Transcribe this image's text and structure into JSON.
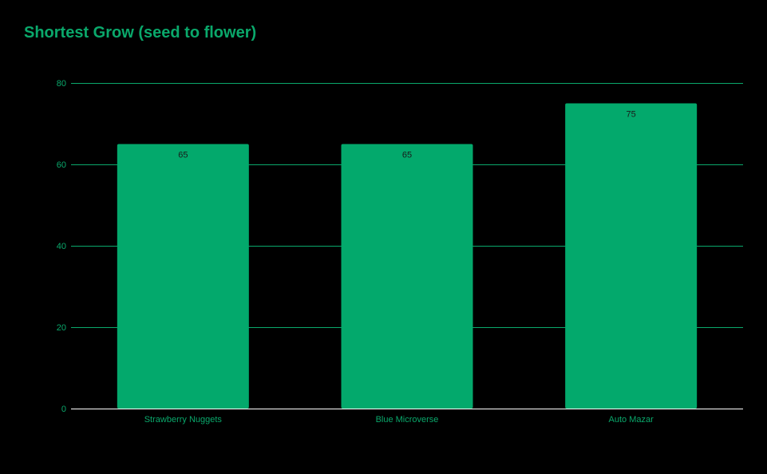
{
  "colors": {
    "background": "#000000",
    "accent": "#0aa86b",
    "bar": "#03a96c",
    "baseline": "#ffffff"
  },
  "chart_data": {
    "type": "bar",
    "title": "Shortest Grow (seed to flower)",
    "xlabel": "",
    "ylabel": "",
    "categories": [
      "Strawberry Nuggets",
      "Blue Microverse",
      "Auto Mazar"
    ],
    "values": [
      65,
      65,
      75
    ],
    "data_labels": [
      "65",
      "65",
      "75"
    ],
    "ylim": [
      0,
      80
    ],
    "yticks": [
      0,
      20,
      40,
      60,
      80
    ],
    "grid": true,
    "legend": "none"
  }
}
